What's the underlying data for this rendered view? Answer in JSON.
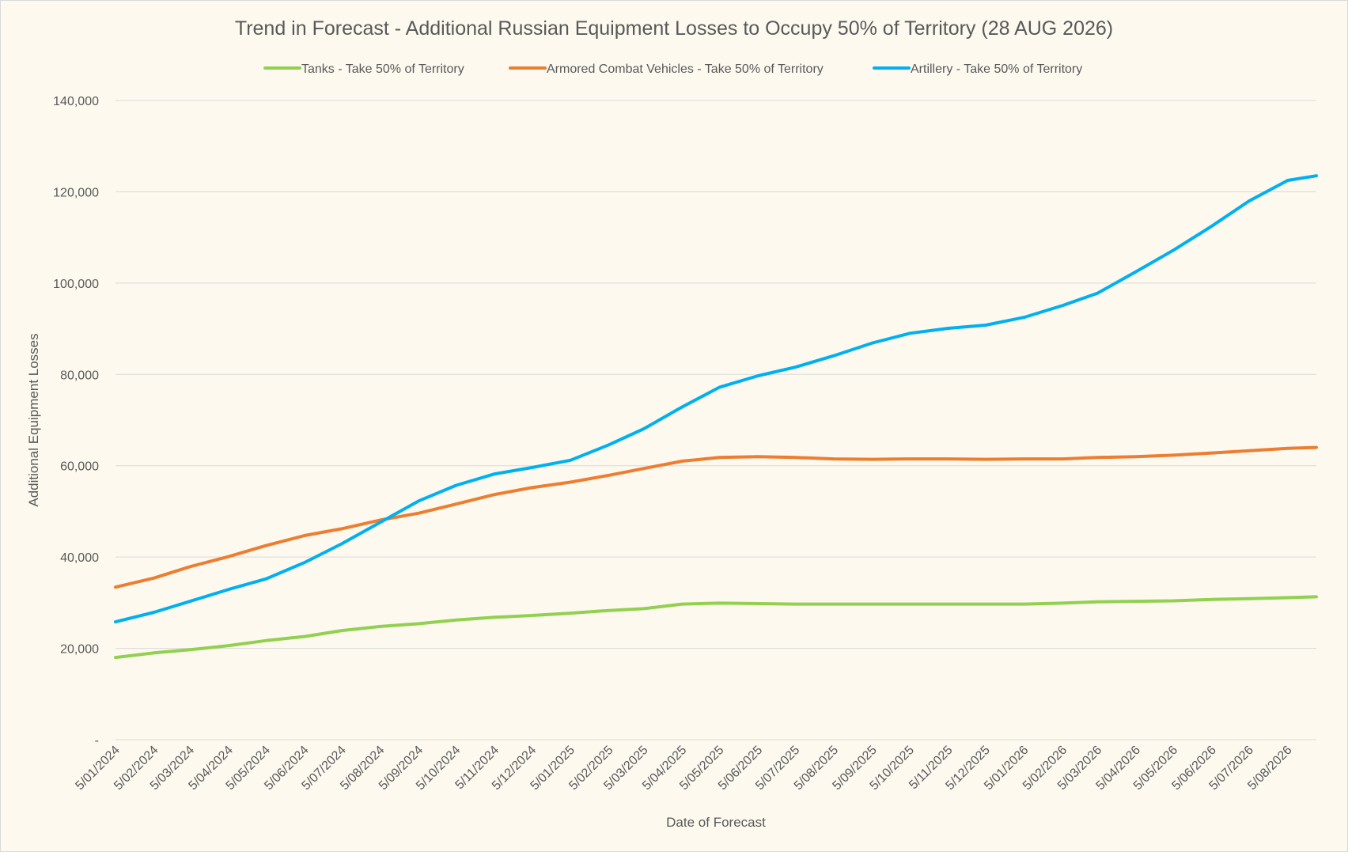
{
  "chart_data": {
    "type": "line",
    "title": "Trend in Forecast - Additional Russian Equipment Losses to Occupy 50% of Territory (28 AUG 2026)",
    "xlabel": "Date of Forecast",
    "ylabel": "Additional Equipment Losses",
    "ylim": [
      0,
      140000
    ],
    "y_ticks": [
      {
        "value": 0,
        "label": "-"
      },
      {
        "value": 20000,
        "label": "20,000"
      },
      {
        "value": 40000,
        "label": "40,000"
      },
      {
        "value": 60000,
        "label": "60,000"
      },
      {
        "value": 80000,
        "label": "80,000"
      },
      {
        "value": 100000,
        "label": "100,000"
      },
      {
        "value": 120000,
        "label": "120,000"
      },
      {
        "value": 140000,
        "label": "140,000"
      }
    ],
    "grid": true,
    "legend_position": "top",
    "x_tick_labels": [
      "5/01/2024",
      "5/02/2024",
      "5/03/2024",
      "5/04/2024",
      "5/05/2024",
      "5/06/2024",
      "5/07/2024",
      "5/08/2024",
      "5/09/2024",
      "5/10/2024",
      "5/11/2024",
      "5/12/2024",
      "5/01/2025",
      "5/02/2025",
      "5/03/2025",
      "5/04/2025",
      "5/05/2025",
      "5/06/2025",
      "5/07/2025",
      "5/08/2025",
      "5/09/2025",
      "5/10/2025",
      "5/11/2025",
      "5/12/2025",
      "5/01/2026",
      "5/02/2026",
      "5/03/2026",
      "5/04/2026",
      "5/05/2026",
      "5/06/2026",
      "5/07/2026",
      "5/08/2026"
    ],
    "x_dates": [
      "2024-01-05",
      "2024-02-05",
      "2024-03-05",
      "2024-04-05",
      "2024-05-05",
      "2024-06-05",
      "2024-07-05",
      "2024-08-05",
      "2024-09-05",
      "2024-10-05",
      "2024-11-05",
      "2024-12-05",
      "2025-01-05",
      "2025-02-05",
      "2025-03-05",
      "2025-04-05",
      "2025-05-05",
      "2025-06-05",
      "2025-07-05",
      "2025-08-05",
      "2025-09-05",
      "2025-10-05",
      "2025-11-05",
      "2025-12-05",
      "2026-01-05",
      "2026-02-05",
      "2026-03-05",
      "2026-04-05",
      "2026-05-05",
      "2026-06-05",
      "2026-07-05",
      "2026-08-05",
      "2026-08-28"
    ],
    "series": [
      {
        "name": "Tanks - Take 50% of Territory",
        "color": "#92d050",
        "values": [
          18000,
          19000,
          19700,
          20600,
          21700,
          22600,
          23900,
          24800,
          25400,
          26200,
          26800,
          27200,
          27700,
          28300,
          28700,
          29700,
          29900,
          29800,
          29700,
          29700,
          29700,
          29700,
          29700,
          29700,
          29700,
          29900,
          30200,
          30300,
          30400,
          30700,
          30900,
          31100,
          31300
        ]
      },
      {
        "name": "Armored Combat Vehicles - Take 50% of Territory",
        "color": "#ed7d31",
        "values": [
          33400,
          35400,
          37900,
          40100,
          42500,
          44700,
          46200,
          48100,
          49600,
          51600,
          53700,
          55200,
          56400,
          57900,
          59400,
          61000,
          61800,
          62000,
          61800,
          61500,
          61400,
          61500,
          61500,
          61400,
          61500,
          61500,
          61800,
          62000,
          62300,
          62800,
          63300,
          63800,
          64000
        ]
      },
      {
        "name": "Artillery - Take 50% of Territory",
        "color": "#00b0f0",
        "values": [
          25800,
          27900,
          30300,
          32900,
          35200,
          38800,
          42900,
          47600,
          52300,
          55700,
          58200,
          59600,
          61200,
          64600,
          68100,
          72900,
          77200,
          79700,
          81600,
          84100,
          86900,
          89000,
          90100,
          90800,
          92500,
          95100,
          97800,
          102500,
          107200,
          112500,
          118000,
          122500,
          123500
        ]
      }
    ]
  }
}
